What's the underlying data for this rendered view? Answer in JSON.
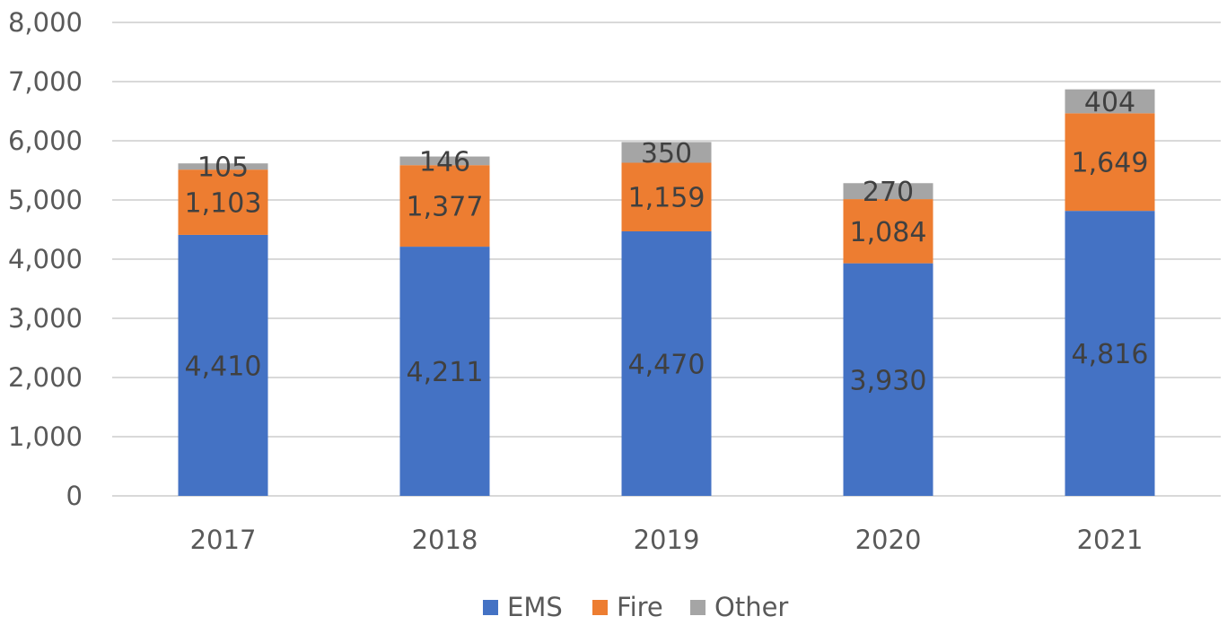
{
  "chart_data": {
    "type": "bar",
    "stacked": true,
    "categories": [
      "2017",
      "2018",
      "2019",
      "2020",
      "2021"
    ],
    "series": [
      {
        "name": "EMS",
        "color": "#4472c4",
        "values": [
          4410,
          4211,
          4470,
          3930,
          4816
        ],
        "labels": [
          "4,410",
          "4,211",
          "4,470",
          "3,930",
          "4,816"
        ]
      },
      {
        "name": "Fire",
        "color": "#ed7d31",
        "values": [
          1103,
          1377,
          1159,
          1084,
          1649
        ],
        "labels": [
          "1,103",
          "1,377",
          "1,159",
          "1,084",
          "1,649"
        ]
      },
      {
        "name": "Other",
        "color": "#a5a5a5",
        "values": [
          105,
          146,
          350,
          270,
          404
        ],
        "labels": [
          "105",
          "146",
          "350",
          "270",
          "404"
        ]
      }
    ],
    "ylim": [
      0,
      8000
    ],
    "yticks": [
      "0",
      "1,000",
      "2,000",
      "3,000",
      "4,000",
      "5,000",
      "6,000",
      "7,000",
      "8,000"
    ],
    "grid": true,
    "legend": "bottom"
  }
}
